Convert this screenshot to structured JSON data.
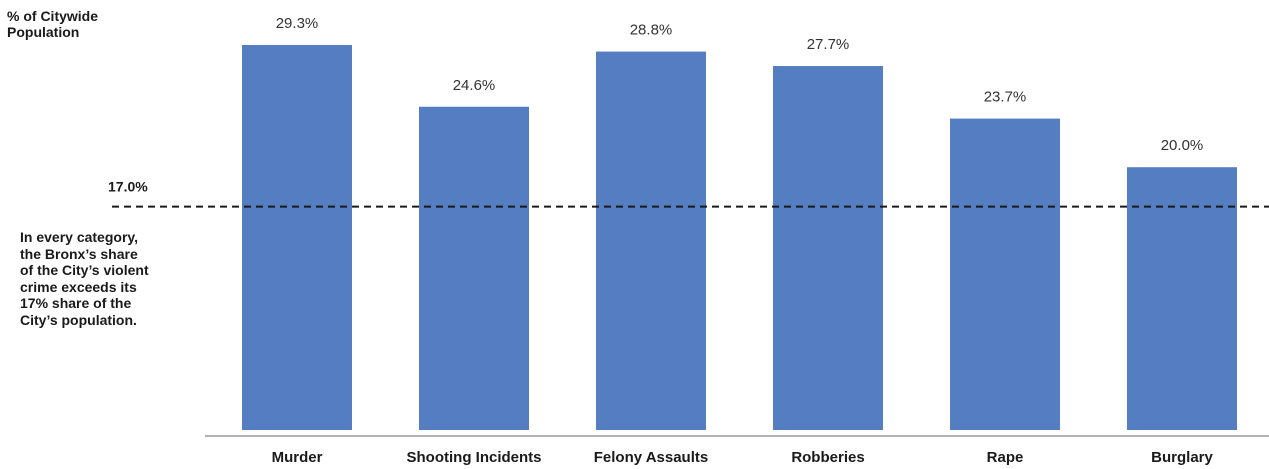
{
  "chart_data": {
    "type": "bar",
    "ylabel_lines": [
      "% of Citywide",
      "Population"
    ],
    "categories": [
      "Murder",
      "Shooting Incidents",
      "Felony Assaults",
      "Robberies",
      "Rape",
      "Burglary"
    ],
    "values": [
      29.3,
      24.6,
      28.8,
      27.7,
      23.7,
      20.0
    ],
    "value_labels": [
      "29.3%",
      "24.6%",
      "28.8%",
      "27.7%",
      "23.7%",
      "20.0%"
    ],
    "reference_line": {
      "value": 17.0,
      "label": "17.0%",
      "style": "dashed"
    },
    "annotation_lines": [
      "In every category,",
      "the Bronx’s share",
      "of the City’s violent",
      "crime exceeds its",
      "17% share of the",
      "City’s population."
    ],
    "ylim": [
      0,
      30
    ],
    "grid": false,
    "legend": "none",
    "bar_color": "#557dc1"
  }
}
